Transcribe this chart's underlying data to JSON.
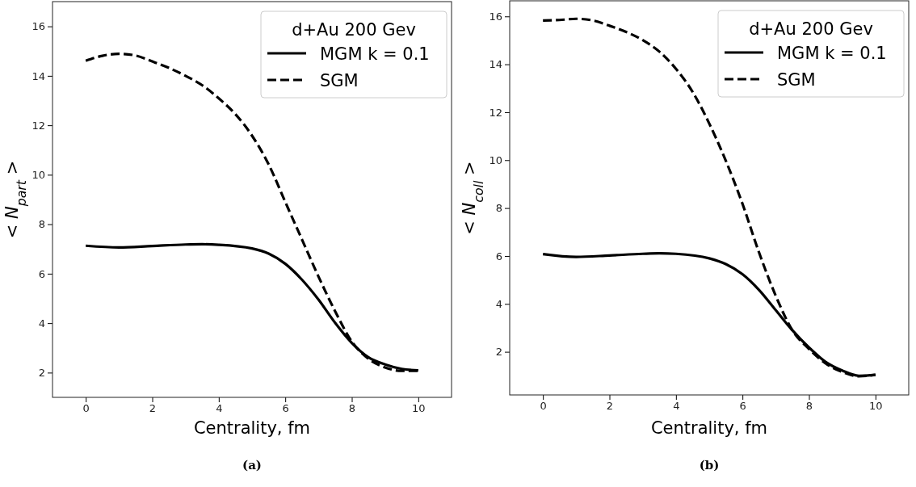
{
  "chart_data": [
    {
      "type": "line",
      "xlabel": "Centrality, fm",
      "ylabel": "< N$_{part}$ >",
      "legend_title": "d+Au 200 Gev",
      "legend": "top right",
      "annotations": [
        "(a)"
      ],
      "xlim": [
        -1,
        11
      ],
      "xticks": [
        0,
        2,
        4,
        6,
        8,
        10
      ],
      "ylim": [
        1,
        17
      ],
      "yticks": [
        2,
        4,
        6,
        8,
        10,
        12,
        14,
        16
      ],
      "series": [
        {
          "name": "MGM k = 0.1",
          "color": "#000000",
          "line_style": "solid",
          "x": [
            0,
            1,
            2,
            3,
            3.5,
            4,
            5,
            5.5,
            6,
            6.5,
            7,
            7.5,
            8,
            8.5,
            9,
            9.5,
            10
          ],
          "values": [
            7.13,
            7.06,
            7.12,
            7.18,
            7.19,
            7.17,
            7.02,
            6.81,
            6.4,
            5.76,
            4.95,
            4.01,
            3.2,
            2.62,
            2.33,
            2.15,
            2.09
          ]
        },
        {
          "name": "SGM",
          "color": "#000000",
          "line_style": "dashed",
          "x": [
            0,
            0.5,
            1,
            1.5,
            2,
            2.5,
            3,
            3.5,
            4,
            4.5,
            5,
            5.5,
            6,
            6.5,
            7,
            7.5,
            8,
            8.5,
            9,
            9.5,
            10
          ],
          "values": [
            14.61,
            14.81,
            14.89,
            14.82,
            14.58,
            14.32,
            14.0,
            13.62,
            13.09,
            12.45,
            11.58,
            10.42,
            8.9,
            7.39,
            5.88,
            4.48,
            3.26,
            2.56,
            2.21,
            2.07,
            2.07
          ]
        }
      ]
    },
    {
      "type": "line",
      "xlabel": "Centrality, fm",
      "ylabel": "< N$_{coll}$ >",
      "legend_title": "d+Au 200 Gev",
      "legend": "top right",
      "annotations": [
        "(b)"
      ],
      "xlim": [
        -1,
        11
      ],
      "xticks": [
        0,
        2,
        4,
        6,
        8,
        10
      ],
      "ylim": [
        0.2,
        16.65
      ],
      "yticks": [
        2,
        4,
        6,
        8,
        10,
        12,
        14,
        16
      ],
      "series": [
        {
          "name": "MGM k = 0.1",
          "color": "#000000",
          "line_style": "solid",
          "x": [
            0,
            1,
            2,
            3,
            3.5,
            4,
            5,
            5.5,
            6,
            6.5,
            7,
            7.5,
            8,
            8.5,
            9,
            9.5,
            10
          ],
          "values": [
            6.08,
            5.96,
            6.02,
            6.09,
            6.11,
            6.09,
            5.9,
            5.66,
            5.24,
            4.58,
            3.74,
            2.9,
            2.18,
            1.58,
            1.22,
            1.0,
            1.04
          ]
        },
        {
          "name": "SGM",
          "color": "#000000",
          "line_style": "dashed",
          "x": [
            0,
            0.5,
            1,
            1.5,
            2,
            2.5,
            3,
            3.5,
            4,
            4.5,
            5,
            5.5,
            6,
            6.5,
            7,
            7.5,
            8,
            8.5,
            9,
            9.5,
            10
          ],
          "values": [
            15.83,
            15.85,
            15.9,
            15.83,
            15.61,
            15.35,
            15.01,
            14.53,
            13.81,
            12.85,
            11.53,
            9.97,
            8.18,
            6.14,
            4.34,
            2.9,
            2.12,
            1.52,
            1.16,
            0.98,
            1.04
          ]
        }
      ]
    }
  ]
}
